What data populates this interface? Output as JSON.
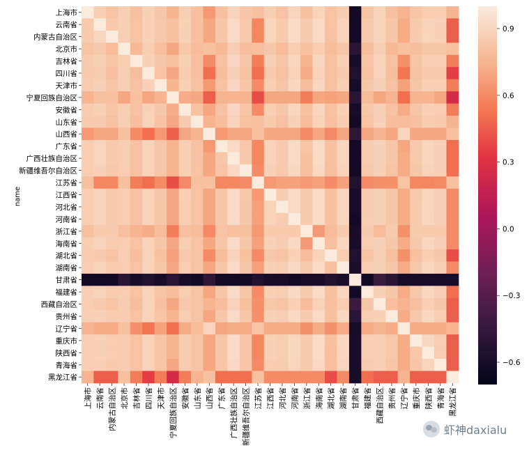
{
  "chart_data": {
    "type": "heatmap",
    "title": "",
    "xlabel": "",
    "ylabel": "name",
    "labels": [
      "上海市",
      "云南省",
      "内蒙古自治区",
      "北京市",
      "吉林省",
      "四川省",
      "天津市",
      "宁夏回族自治区",
      "安徽省",
      "山东省",
      "山西省",
      "广东省",
      "广西壮族自治区",
      "新疆维吾尔自治区",
      "江苏省",
      "江西省",
      "河北省",
      "河南省",
      "浙江省",
      "海南省",
      "湖北省",
      "湖南省",
      "甘肃省",
      "福建省",
      "西藏自治区",
      "贵州省",
      "辽宁省",
      "重庆市",
      "陕西省",
      "青海省",
      "黑龙江省"
    ],
    "colorbar": {
      "min": -0.7,
      "max": 1.0,
      "ticks": [
        0.9,
        0.6,
        0.3,
        0.0,
        -0.3,
        -0.6
      ],
      "tick_labels": [
        "0.9",
        "0.6",
        "0.3",
        "0.0",
        "−0.3",
        "−0.6"
      ]
    },
    "colormap": "rocket",
    "correlations": {
      "gansu_row": [
        -0.62,
        -0.62,
        -0.62,
        -0.5,
        -0.6,
        -0.55,
        -0.6,
        -0.5,
        -0.6,
        -0.62,
        -0.48,
        -0.62,
        -0.62,
        -0.62,
        -0.55,
        -0.6,
        -0.6,
        -0.62,
        -0.6,
        -0.6,
        -0.55,
        -0.58,
        1.0,
        -0.62,
        -0.42,
        -0.5,
        -0.6,
        -0.6,
        -0.6,
        -0.6,
        -0.6
      ],
      "heilongjiang_row": [
        0.75,
        0.45,
        0.45,
        0.8,
        0.55,
        0.35,
        0.55,
        0.25,
        0.55,
        0.75,
        0.8,
        0.5,
        0.5,
        0.5,
        0.8,
        0.6,
        0.6,
        0.6,
        0.6,
        0.6,
        0.4,
        0.6,
        -0.6,
        0.5,
        0.45,
        0.45,
        0.75,
        0.45,
        0.45,
        0.45,
        1.0
      ],
      "shanxi_row": [
        0.65,
        0.7,
        0.7,
        0.8,
        0.6,
        0.5,
        0.65,
        0.45,
        0.7,
        0.75,
        1.0,
        0.65,
        0.7,
        0.7,
        0.8,
        0.7,
        0.7,
        0.7,
        0.6,
        0.7,
        0.6,
        0.7,
        -0.48,
        0.7,
        0.75,
        0.7,
        0.9,
        0.7,
        0.7,
        0.7,
        0.8
      ],
      "jiangsu_row": [
        0.8,
        0.58,
        0.58,
        0.8,
        0.55,
        0.5,
        0.6,
        0.4,
        0.6,
        0.8,
        0.8,
        0.58,
        0.58,
        0.6,
        1.0,
        0.65,
        0.68,
        0.68,
        0.65,
        0.68,
        0.6,
        0.68,
        -0.55,
        0.6,
        0.62,
        0.62,
        0.82,
        0.58,
        0.58,
        0.6,
        0.8
      ],
      "ningxia_row": [
        0.75,
        0.8,
        0.8,
        0.7,
        0.8,
        0.7,
        0.75,
        1.0,
        0.72,
        0.7,
        0.45,
        0.75,
        0.75,
        0.75,
        0.4,
        0.7,
        0.7,
        0.7,
        0.55,
        0.7,
        0.68,
        0.7,
        -0.5,
        0.78,
        0.7,
        0.75,
        0.5,
        0.75,
        0.75,
        0.7,
        0.25
      ],
      "zhejiang_row": [
        0.8,
        0.85,
        0.85,
        0.8,
        0.75,
        0.72,
        0.78,
        0.55,
        0.8,
        0.78,
        0.6,
        0.82,
        0.8,
        0.8,
        0.65,
        0.85,
        0.85,
        0.85,
        1.0,
        0.65,
        0.78,
        0.85,
        -0.6,
        0.85,
        0.78,
        0.85,
        0.62,
        0.85,
        0.85,
        0.85,
        0.6
      ],
      "liaoning_row": [
        0.75,
        0.72,
        0.72,
        0.8,
        0.62,
        0.52,
        0.68,
        0.5,
        0.72,
        0.78,
        0.9,
        0.7,
        0.72,
        0.72,
        0.82,
        0.72,
        0.72,
        0.72,
        0.62,
        0.72,
        0.62,
        0.72,
        -0.6,
        0.72,
        0.75,
        0.72,
        1.0,
        0.72,
        0.72,
        0.72,
        0.75
      ]
    }
  },
  "watermark": {
    "text": "虾神daxialu",
    "icon": "wechat-icon"
  }
}
